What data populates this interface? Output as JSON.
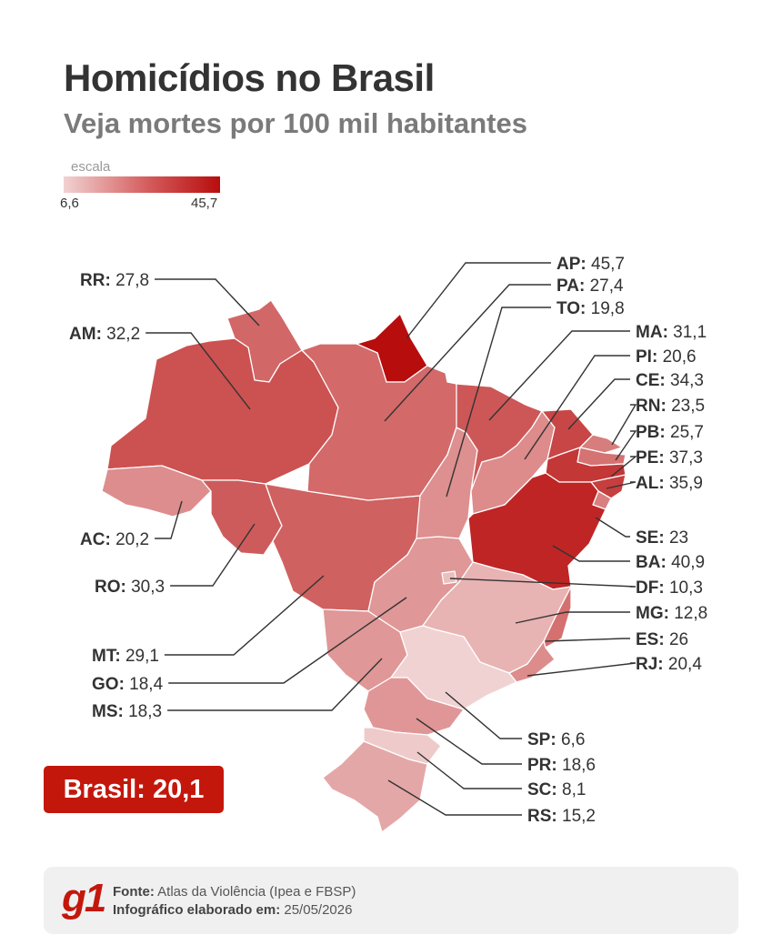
{
  "header": {
    "title": "Homicídios no Brasil",
    "subtitle": "Veja mortes por 100 mil habitantes"
  },
  "scale": {
    "label": "escala",
    "min": "6,6",
    "max": "45,7",
    "min_value": 6.6,
    "max_value": 45.7,
    "color_low": "#f1d2d2",
    "color_high": "#b80d0d"
  },
  "states": [
    {
      "code": "RR",
      "value": "27,8"
    },
    {
      "code": "AM",
      "value": "32,2"
    },
    {
      "code": "AC",
      "value": "20,2"
    },
    {
      "code": "RO",
      "value": "30,3"
    },
    {
      "code": "MT",
      "value": "29,1"
    },
    {
      "code": "GO",
      "value": "18,4"
    },
    {
      "code": "MS",
      "value": "18,3"
    },
    {
      "code": "AP",
      "value": "45,7"
    },
    {
      "code": "PA",
      "value": "27,4"
    },
    {
      "code": "TO",
      "value": "19,8"
    },
    {
      "code": "MA",
      "value": "31,1"
    },
    {
      "code": "PI",
      "value": "20,6"
    },
    {
      "code": "CE",
      "value": "34,3"
    },
    {
      "code": "RN",
      "value": "23,5"
    },
    {
      "code": "PB",
      "value": "25,7"
    },
    {
      "code": "PE",
      "value": "37,3"
    },
    {
      "code": "AL",
      "value": "35,9"
    },
    {
      "code": "SE",
      "value": "23"
    },
    {
      "code": "BA",
      "value": "40,9"
    },
    {
      "code": "DF",
      "value": "10,3"
    },
    {
      "code": "MG",
      "value": "12,8"
    },
    {
      "code": "ES",
      "value": "26"
    },
    {
      "code": "RJ",
      "value": "20,4"
    },
    {
      "code": "SP",
      "value": "6,6"
    },
    {
      "code": "PR",
      "value": "18,6"
    },
    {
      "code": "SC",
      "value": "8,1"
    },
    {
      "code": "RS",
      "value": "15,2"
    }
  ],
  "national": {
    "label": "Brasil:",
    "value": "20,1"
  },
  "footer": {
    "logo": "g1",
    "source_label": "Fonte:",
    "source_text": "Atlas da Violência (Ipea e FBSP)",
    "date_label": "Infográfico elaborado em:",
    "date_text": "25/05/2026"
  }
}
